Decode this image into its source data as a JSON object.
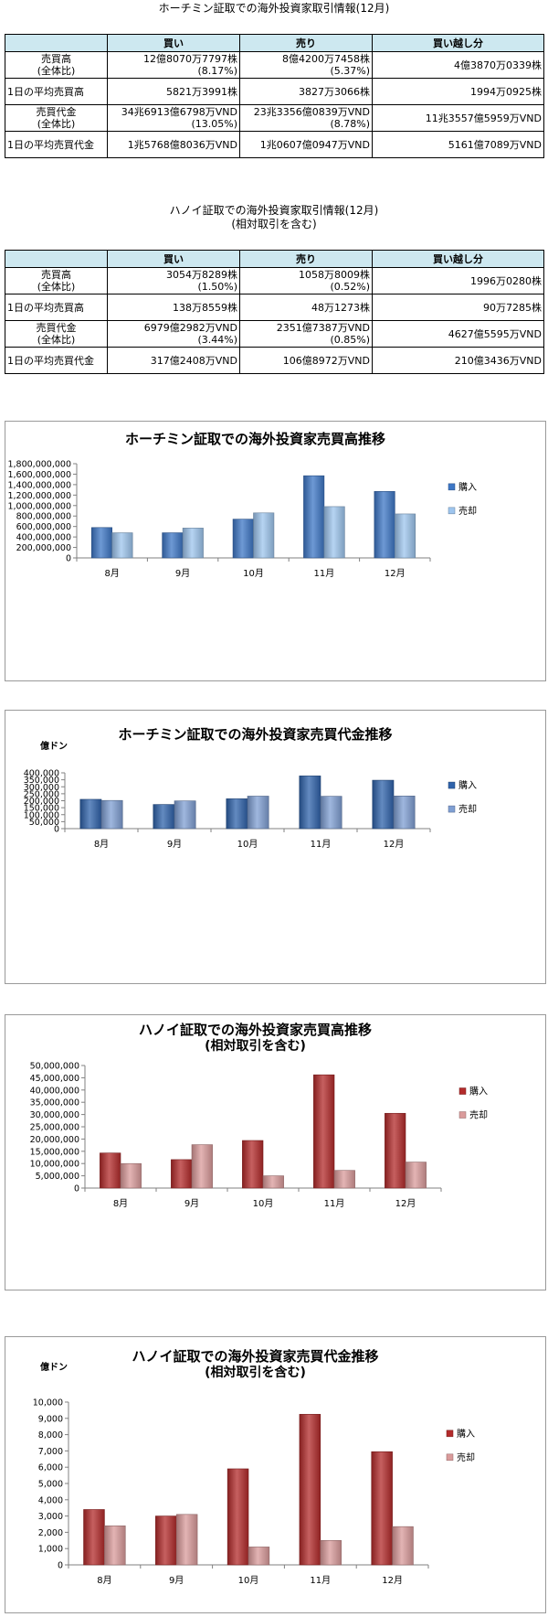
{
  "tables": [
    {
      "title": "ホーチミン証取での海外投資家取引情報(12月)",
      "headers": [
        "",
        "買い",
        "売り",
        "買い越し分"
      ],
      "rows": [
        {
          "label": [
            "売買高",
            "(全体比)"
          ],
          "buy": [
            "12億8070万7797株",
            "(8.17%)"
          ],
          "sell": [
            "8億4200万7458株",
            "(5.37%)"
          ],
          "net": [
            "4億3870万0339株"
          ]
        },
        {
          "label": [
            "1日の平均売買高"
          ],
          "buy": [
            "5821万3991株"
          ],
          "sell": [
            "3827万3066株"
          ],
          "net": [
            "1994万0925株"
          ]
        },
        {
          "label": [
            "売買代金",
            "(全体比)"
          ],
          "buy": [
            "34兆6913億6798万VND",
            "(13.05%)"
          ],
          "sell": [
            "23兆3356億0839万VND",
            "(8.78%)"
          ],
          "net": [
            "11兆3557億5959万VND"
          ]
        },
        {
          "label": [
            "1日の平均売買代金"
          ],
          "buy": [
            "1兆5768億8036万VND"
          ],
          "sell": [
            "1兆0607億0947万VND"
          ],
          "net": [
            "5161億7089万VND"
          ]
        }
      ]
    },
    {
      "title": "ハノイ証取での海外投資家取引情報(12月)",
      "subtitle": "(相対取引を含む)",
      "headers": [
        "",
        "買い",
        "売り",
        "買い越し分"
      ],
      "rows": [
        {
          "label": [
            "売買高",
            "(全体比)"
          ],
          "buy": [
            "3054万8289株",
            "(1.50%)"
          ],
          "sell": [
            "1058万8009株",
            "(0.52%)"
          ],
          "net": [
            "1996万0280株"
          ]
        },
        {
          "label": [
            "1日の平均売買高"
          ],
          "buy": [
            "138万8559株"
          ],
          "sell": [
            "48万1273株"
          ],
          "net": [
            "90万7285株"
          ]
        },
        {
          "label": [
            "売買代金",
            "(全体比)"
          ],
          "buy": [
            "6979億2982万VND",
            "(3.44%)"
          ],
          "sell": [
            "2351億7387万VND",
            "(0.85%)"
          ],
          "net": [
            "4627億5595万VND"
          ]
        },
        {
          "label": [
            "1日の平均売買代金"
          ],
          "buy": [
            "317億2408万VND"
          ],
          "sell": [
            "106億8972万VND"
          ],
          "net": [
            "210億3436万VND"
          ]
        }
      ]
    }
  ],
  "chart_data": [
    {
      "type": "bar",
      "title": "ホーチミン証取での海外投資家売買高推移",
      "subtitle": "",
      "unit_label": "",
      "categories": [
        "8月",
        "9月",
        "10月",
        "11月",
        "12月"
      ],
      "series": [
        {
          "name": "購入",
          "values": [
            580000000,
            480000000,
            740000000,
            1570000000,
            1270000000
          ],
          "color": "#3d77c6"
        },
        {
          "name": "売却",
          "values": [
            480000000,
            570000000,
            860000000,
            980000000,
            840000000
          ],
          "color": "#9ec5ee"
        }
      ],
      "ylim": [
        0,
        1800000000
      ],
      "ticks": [
        0,
        200000000,
        400000000,
        600000000,
        800000000,
        1000000000,
        1200000000,
        1400000000,
        1600000000,
        1800000000
      ],
      "tick_labels": [
        "0",
        "200,000,000",
        "400,000,000",
        "600,000,000",
        "800,000,000",
        "1,000,000,000",
        "1,200,000,000",
        "1,400,000,000",
        "1,600,000,000",
        "1,800,000,000"
      ],
      "grid": false,
      "legend": "right"
    },
    {
      "type": "bar",
      "title": "ホーチミン証取での海外投資家売買代金推移",
      "subtitle": "",
      "unit_label": "億ドン",
      "categories": [
        "8月",
        "9月",
        "10月",
        "11月",
        "12月"
      ],
      "series": [
        {
          "name": "購入",
          "values": [
            210000,
            173000,
            214000,
            378000,
            347000
          ],
          "color": "#2f63ab"
        },
        {
          "name": "売却",
          "values": [
            202000,
            199000,
            233000,
            232000,
            234000
          ],
          "color": "#7f9fd3"
        }
      ],
      "ylim": [
        0,
        400000
      ],
      "ticks": [
        0,
        50000,
        100000,
        150000,
        200000,
        250000,
        300000,
        350000,
        400000
      ],
      "tick_labels": [
        "0",
        "50,000",
        "100,000",
        "150,000",
        "200,000",
        "250,000",
        "300,000",
        "350,000",
        "400,000"
      ],
      "grid": false,
      "legend": "right"
    },
    {
      "type": "bar",
      "title": "ハノイ証取での海外投資家売買高推移",
      "subtitle": "(相対取引を含む)",
      "unit_label": "",
      "categories": [
        "8月",
        "9月",
        "10月",
        "11月",
        "12月"
      ],
      "series": [
        {
          "name": "購入",
          "values": [
            14300000,
            11600000,
            19400000,
            46200000,
            30500000
          ],
          "color": "#b32b2b"
        },
        {
          "name": "売却",
          "values": [
            10000000,
            17700000,
            5000000,
            7200000,
            10600000
          ],
          "color": "#da9b9b"
        }
      ],
      "ylim": [
        0,
        50000000
      ],
      "ticks": [
        0,
        5000000,
        10000000,
        15000000,
        20000000,
        25000000,
        30000000,
        35000000,
        40000000,
        45000000,
        50000000
      ],
      "tick_labels": [
        "0",
        "5,000,000",
        "10,000,000",
        "15,000,000",
        "20,000,000",
        "25,000,000",
        "30,000,000",
        "35,000,000",
        "40,000,000",
        "45,000,000",
        "50,000,000"
      ],
      "grid": false,
      "legend": "right"
    },
    {
      "type": "bar",
      "title": "ハノイ証取での海外投資家売買代金推移",
      "subtitle": "(相対取引を含む)",
      "unit_label": "億ドン",
      "categories": [
        "8月",
        "9月",
        "10月",
        "11月",
        "12月"
      ],
      "series": [
        {
          "name": "購入",
          "values": [
            3400,
            3000,
            5900,
            9250,
            6950
          ],
          "color": "#b32b2b"
        },
        {
          "name": "売却",
          "values": [
            2400,
            3100,
            1100,
            1500,
            2350
          ],
          "color": "#da9b9b"
        }
      ],
      "ylim": [
        0,
        10000
      ],
      "ticks": [
        0,
        1000,
        2000,
        3000,
        4000,
        5000,
        6000,
        7000,
        8000,
        9000,
        10000
      ],
      "tick_labels": [
        "0",
        "1,000",
        "2,000",
        "3,000",
        "4,000",
        "5,000",
        "6,000",
        "7,000",
        "8,000",
        "9,000",
        "10,000"
      ],
      "grid": false,
      "legend": "right"
    }
  ]
}
